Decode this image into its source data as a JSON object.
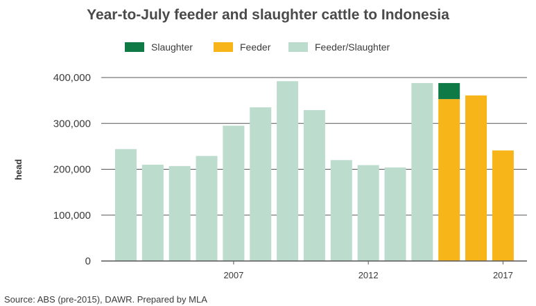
{
  "chart_data": {
    "type": "bar",
    "stacked": true,
    "title": "Year-to-July feeder and slaughter cattle to Indonesia",
    "ylabel": "head",
    "xlabel": "",
    "ylim": [
      0,
      400000
    ],
    "yticks": [
      "0",
      "100,000",
      "200,000",
      "300,000",
      "400,000"
    ],
    "x": [
      2003,
      2004,
      2005,
      2006,
      2007,
      2008,
      2009,
      2010,
      2011,
      2012,
      2013,
      2014,
      2015,
      2016,
      2017
    ],
    "xtick_labels": [
      {
        "year": 2007,
        "label": "2007"
      },
      {
        "year": 2012,
        "label": "2012"
      },
      {
        "year": 2017,
        "label": "2017"
      }
    ],
    "grid": "horizontal",
    "legend_position": "top",
    "series": [
      {
        "name": "Slaughter",
        "color": "#0f7a45",
        "values": [
          0,
          0,
          0,
          0,
          0,
          0,
          0,
          0,
          0,
          0,
          0,
          0,
          35000,
          0,
          0
        ]
      },
      {
        "name": "Feeder",
        "color": "#f7b519",
        "values": [
          0,
          0,
          0,
          0,
          0,
          0,
          0,
          0,
          0,
          0,
          0,
          0,
          353000,
          361000,
          241000
        ]
      },
      {
        "name": "Feeder/Slaughter",
        "color": "#bcdccd",
        "values": [
          244000,
          210000,
          207000,
          229000,
          295000,
          335000,
          392000,
          329000,
          220000,
          209000,
          204000,
          388000,
          0,
          0,
          0
        ]
      }
    ],
    "source": "Source: ABS (pre-2015), DAWR. Prepared by MLA"
  }
}
